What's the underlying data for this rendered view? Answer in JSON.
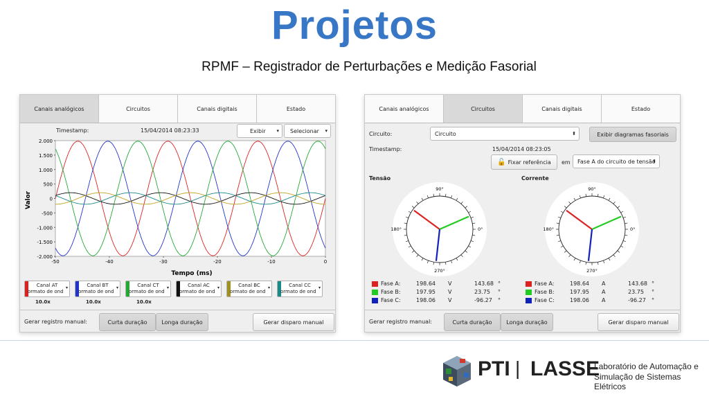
{
  "slide": {
    "title": "Projetos",
    "subtitle": "RPMF – Registrador de Perturbações e Medição Fasorial"
  },
  "left_panel": {
    "tabs": [
      {
        "label": "Canais analógicos",
        "active": true
      },
      {
        "label": "Circuitos",
        "active": false
      },
      {
        "label": "Canais digitais",
        "active": false
      },
      {
        "label": "Estado",
        "active": false
      }
    ],
    "timestamp_label": "Timestamp:",
    "timestamp_value": "15/04/2014 08:23:33",
    "show_select": "Exibir",
    "choose_select": "Selecionar",
    "channels": [
      {
        "name": "Canal AT",
        "sub": "ormato de ond",
        "color": "#dd2222",
        "scale": "10.0x"
      },
      {
        "name": "Canal BT",
        "sub": "ormato de ond",
        "color": "#2233cc",
        "scale": "10.0x"
      },
      {
        "name": "Canal CT",
        "sub": "ormato de ond",
        "color": "#22aa33",
        "scale": "10.0x"
      },
      {
        "name": "Canal AC",
        "sub": "ormato de ond",
        "color": "#111111",
        "scale": ""
      },
      {
        "name": "Canal BC",
        "sub": "ormato de ond",
        "color": "#a09020",
        "scale": ""
      },
      {
        "name": "Canal CC",
        "sub": "ormato de ond",
        "color": "#1a8a88",
        "scale": ""
      }
    ],
    "manual_label": "Gerar registro manual:",
    "short_button": "Curta duração",
    "long_button": "Longa duração",
    "trigger_button": "Gerar disparo manual"
  },
  "chart_data": {
    "type": "line",
    "xlabel": "Tempo (ms)",
    "ylabel": "Valor",
    "xlim": [
      -50,
      0
    ],
    "ylim": [
      -2000,
      2000
    ],
    "xticks": [
      "-50",
      "-40",
      "-30",
      "-20",
      "-10",
      "0"
    ],
    "yticks": [
      "2.000",
      "1.500",
      "1.000",
      "500",
      "0",
      "-500",
      "-1.000",
      "-1.500",
      "-2.000"
    ],
    "frequency_hz": 60,
    "series": [
      {
        "channel": "Canal AT",
        "color": "#dd2222",
        "amplitude": 1980,
        "phase_deg": 0
      },
      {
        "channel": "Canal BT",
        "color": "#2233cc",
        "amplitude": 1980,
        "phase_deg": -120
      },
      {
        "channel": "Canal CT",
        "color": "#22aa33",
        "amplitude": 1980,
        "phase_deg": 120
      },
      {
        "channel": "Canal AC",
        "color": "#111111",
        "amplitude": 200,
        "phase_deg": 30
      },
      {
        "channel": "Canal BC",
        "color": "#c0a020",
        "amplitude": 200,
        "phase_deg": -90
      },
      {
        "channel": "Canal CC",
        "color": "#1a8a88",
        "amplitude": 200,
        "phase_deg": 150
      }
    ]
  },
  "right_panel": {
    "tabs": [
      {
        "label": "Canais analógicos",
        "active": false
      },
      {
        "label": "Circuitos",
        "active": true
      },
      {
        "label": "Canais digitais",
        "active": false
      },
      {
        "label": "Estado",
        "active": false
      }
    ],
    "circuit_label": "Circuito:",
    "circuit_value": "Circuito",
    "show_phasor_button": "Exibir diagramas fasoriais",
    "timestamp_label": "Timestamp:",
    "timestamp_value": "15/04/2014 08:23:05",
    "fix_ref_button": "Fixar referência",
    "em_label": "em",
    "ref_select": "Fase A do circuito de tensão",
    "voltage_title": "Tensão",
    "current_title": "Corrente",
    "angle_labels": {
      "top": "90°",
      "left": "180°",
      "right": "0°",
      "bottom": "270°"
    },
    "voltage_phasors": [
      {
        "label": "Fase A:",
        "mag": "198.64",
        "unit": "V",
        "angle": "143.68",
        "deg": "°",
        "color": "#dd2222",
        "angle_value": 143.68
      },
      {
        "label": "Fase B:",
        "mag": "197.95",
        "unit": "V",
        "angle": "23.75",
        "deg": "°",
        "color": "#22cc22",
        "angle_value": 23.75
      },
      {
        "label": "Fase C:",
        "mag": "198.06",
        "unit": "V",
        "angle": "-96.27",
        "deg": "°",
        "color": "#1122bb",
        "angle_value": -96.27
      }
    ],
    "current_phasors": [
      {
        "label": "Fase A:",
        "mag": "198.64",
        "unit": "A",
        "angle": "143.68",
        "deg": "°",
        "color": "#dd2222",
        "angle_value": 143.68
      },
      {
        "label": "Fase B:",
        "mag": "197.95",
        "unit": "A",
        "angle": "23.75",
        "deg": "°",
        "color": "#22cc22",
        "angle_value": 23.75
      },
      {
        "label": "Fase C:",
        "mag": "198.06",
        "unit": "A",
        "angle": "-96.27",
        "deg": "°",
        "color": "#1122bb",
        "angle_value": -96.27
      }
    ],
    "manual_label": "Gerar registro manual:",
    "short_button": "Curta duração",
    "long_button": "Longa duração",
    "trigger_button": "Gerar disparo manual"
  },
  "footer": {
    "logo1": "PTI",
    "separator": "|",
    "logo2": "LASSE",
    "lab_line1": "Laboratório de Automação e",
    "lab_line2": "Simulação de Sistemas Elétricos"
  }
}
